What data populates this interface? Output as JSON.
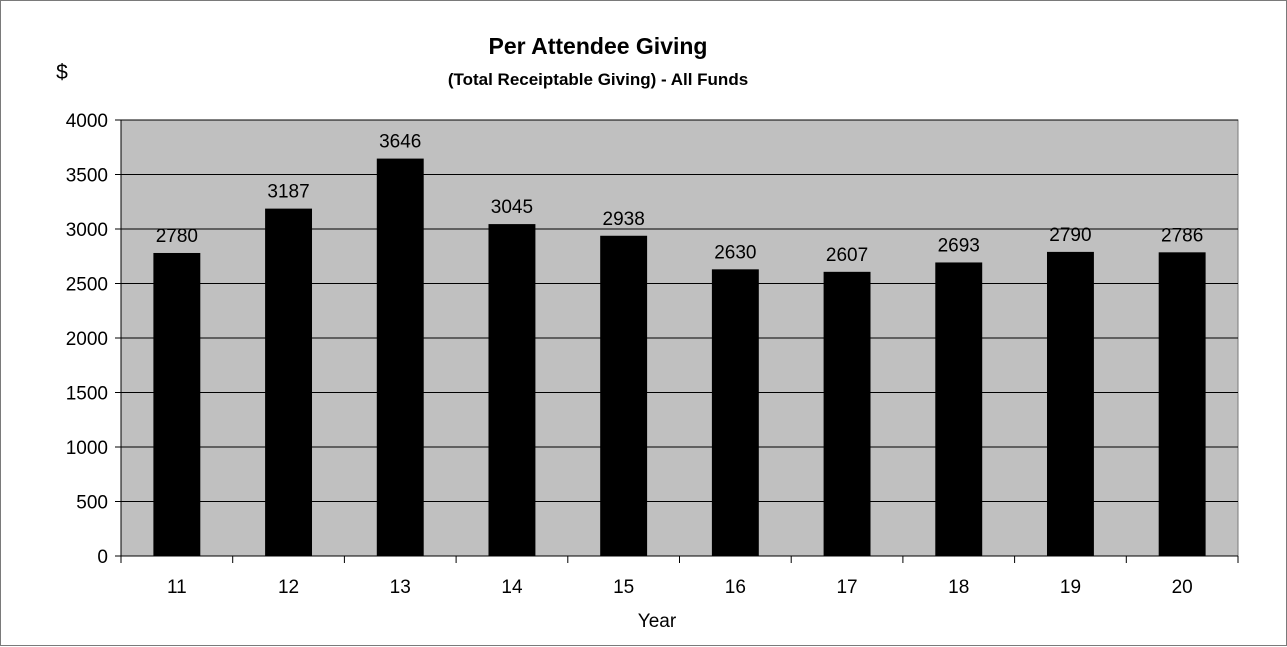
{
  "chart_data": {
    "type": "bar",
    "title": "Per Attendee Giving",
    "subtitle": "(Total Receiptable Giving) - All Funds",
    "unit_label": "$",
    "xlabel": "Year",
    "ylabel": "",
    "categories": [
      "11",
      "12",
      "13",
      "14",
      "15",
      "16",
      "17",
      "18",
      "19",
      "20"
    ],
    "values": [
      2780,
      3187,
      3646,
      3045,
      2938,
      2630,
      2607,
      2693,
      2790,
      2786
    ],
    "data_labels": [
      "2780",
      "3187",
      "3646",
      "3045",
      "2938",
      "2630",
      "2607",
      "2693",
      "2790",
      "2786"
    ],
    "ylim": [
      0,
      4000
    ],
    "yticks": [
      "0",
      "500",
      "1000",
      "1500",
      "2000",
      "2500",
      "3000",
      "3500",
      "4000"
    ],
    "grid": true,
    "legend": "none",
    "colors": {
      "bar": "#000000",
      "plot_background": "#c0c0c0",
      "gridline": "#000000"
    }
  }
}
